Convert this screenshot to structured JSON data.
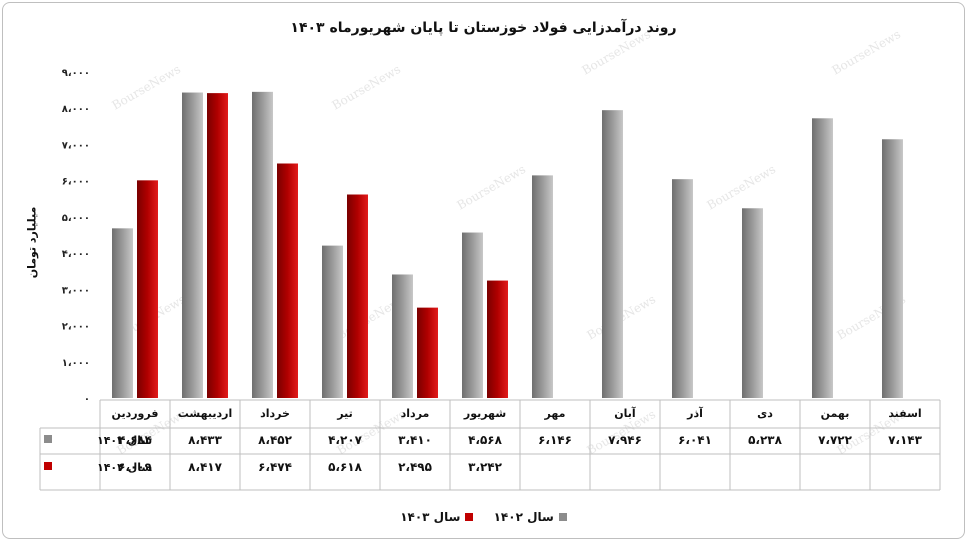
{
  "title": "روند درآمدزایی فولاد خوزستان تا پایان شهریورماه ۱۴۰۳",
  "watermark": "BourseNews",
  "chart_data": {
    "type": "bar",
    "ylabel": "میلیارد تومان",
    "ylim": [
      0,
      9000
    ],
    "yticks": [
      0,
      1000,
      2000,
      3000,
      4000,
      5000,
      6000,
      7000,
      8000,
      9000
    ],
    "ytick_labels": [
      "۰",
      "۱،۰۰۰",
      "۲،۰۰۰",
      "۳،۰۰۰",
      "۴،۰۰۰",
      "۵،۰۰۰",
      "۶،۰۰۰",
      "۷،۰۰۰",
      "۸،۰۰۰",
      "۹،۰۰۰"
    ],
    "categories": [
      "فروردین",
      "اردیبهشت",
      "خرداد",
      "تیر",
      "مرداد",
      "شهریور",
      "مهر",
      "آبان",
      "آذر",
      "دی",
      "بهمن",
      "اسفند"
    ],
    "series": [
      {
        "name": "سال ۱۴۰۲",
        "color": "#8c8c8c",
        "values": [
          4684,
          8433,
          8452,
          4207,
          3410,
          4568,
          6146,
          7946,
          6041,
          5238,
          7722,
          7143
        ],
        "labels": [
          "۴،۶۸۴",
          "۸،۴۳۳",
          "۸،۴۵۲",
          "۴،۲۰۷",
          "۳،۴۱۰",
          "۴،۵۶۸",
          "۶،۱۴۶",
          "۷،۹۴۶",
          "۶،۰۴۱",
          "۵،۲۳۸",
          "۷،۷۲۲",
          "۷،۱۴۳"
        ]
      },
      {
        "name": "سال ۱۴۰۳",
        "color": "#c00000",
        "values": [
          6009,
          8417,
          6474,
          5618,
          2495,
          3242,
          null,
          null,
          null,
          null,
          null,
          null
        ],
        "labels": [
          "۶،۰۰۹",
          "۸،۴۱۷",
          "۶،۴۷۴",
          "۵،۶۱۸",
          "۲،۴۹۵",
          "۳،۲۴۲",
          "",
          "",
          "",
          "",
          "",
          ""
        ]
      }
    ],
    "grid": false,
    "legend": "bottom",
    "data_table": true
  }
}
